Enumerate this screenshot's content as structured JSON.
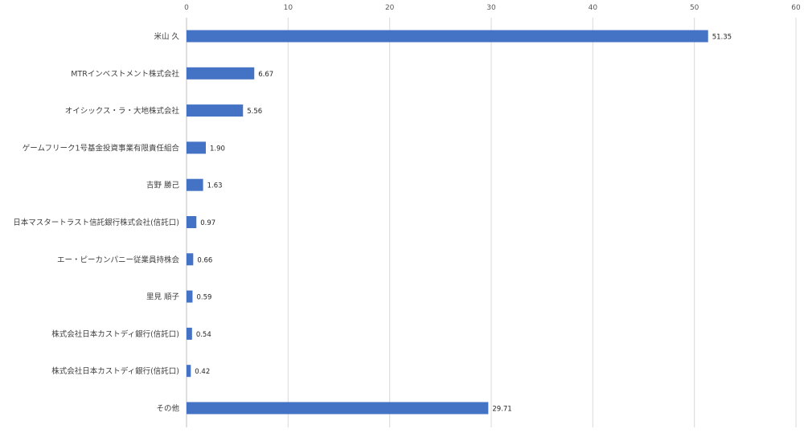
{
  "chart_data": {
    "type": "bar",
    "orientation": "horizontal",
    "categories": [
      "米山 久",
      "MTRインベストメント株式会社",
      "オイシックス・ラ・大地株式会社",
      "ゲームフリーク1号基金投資事業有限責任組合",
      "吉野 勝己",
      "日本マスタートラスト信託銀行株式会社(信託口)",
      "エー・ピーカンパニー従業員持株会",
      "里見 順子",
      "株式会社日本カストディ銀行(信託口)",
      "株式会社日本カストディ銀行(信託口)",
      "その他"
    ],
    "values": [
      51.35,
      6.67,
      5.56,
      1.9,
      1.63,
      0.97,
      0.66,
      0.59,
      0.54,
      0.42,
      29.71
    ],
    "value_labels": [
      "51.35",
      "6.67",
      "5.56",
      "1.90",
      "1.63",
      "0.97",
      "0.66",
      "0.59",
      "0.54",
      "0.42",
      "29.71"
    ],
    "xlim": [
      0,
      60
    ],
    "x_ticks": [
      0,
      10,
      20,
      30,
      40,
      50,
      60
    ],
    "x_axis_position": "top",
    "grid": true,
    "bar_color": "#4472c4",
    "title": "",
    "xlabel": "",
    "ylabel": ""
  }
}
